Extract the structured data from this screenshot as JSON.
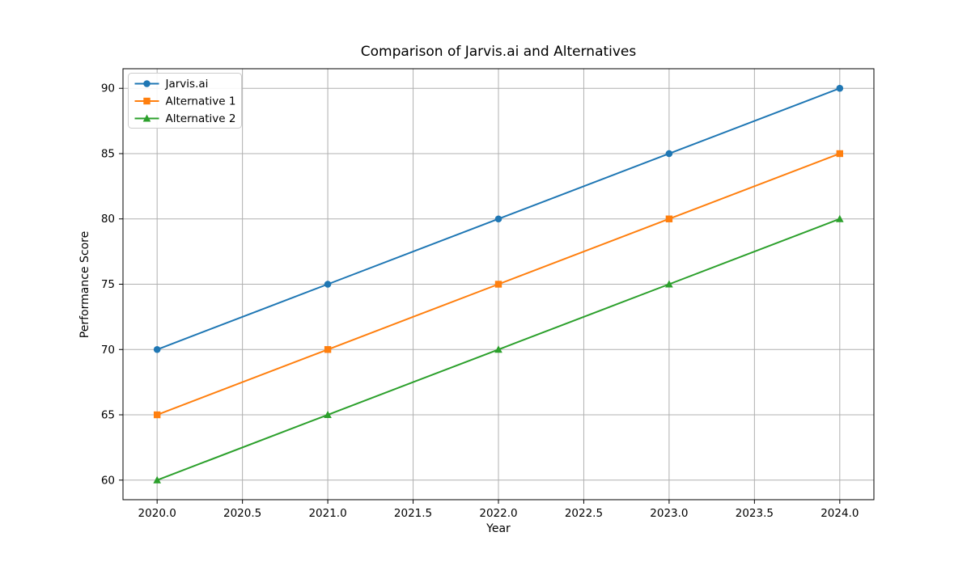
{
  "chart_data": {
    "type": "line",
    "title": "Comparison of Jarvis.ai and Alternatives",
    "xlabel": "Year",
    "ylabel": "Performance Score",
    "x": [
      2020,
      2021,
      2022,
      2023,
      2024
    ],
    "series": [
      {
        "name": "Jarvis.ai",
        "values": [
          70,
          75,
          80,
          85,
          90
        ],
        "color": "#1f77b4",
        "marker": "circle"
      },
      {
        "name": "Alternative 1",
        "values": [
          65,
          70,
          75,
          80,
          85
        ],
        "color": "#ff7f0e",
        "marker": "square"
      },
      {
        "name": "Alternative 2",
        "values": [
          60,
          65,
          70,
          75,
          80
        ],
        "color": "#2ca02c",
        "marker": "triangle"
      }
    ],
    "xtick_values": [
      2020.0,
      2020.5,
      2021.0,
      2021.5,
      2022.0,
      2022.5,
      2023.0,
      2023.5,
      2024.0
    ],
    "xtick_labels": [
      "2020.0",
      "2020.5",
      "2021.0",
      "2021.5",
      "2022.0",
      "2022.5",
      "2023.0",
      "2023.5",
      "2024.0"
    ],
    "ytick_values": [
      60,
      65,
      70,
      75,
      80,
      85,
      90
    ],
    "ytick_labels": [
      "60",
      "65",
      "70",
      "75",
      "80",
      "85",
      "90"
    ],
    "xlim": [
      2019.8,
      2024.2
    ],
    "ylim": [
      58.5,
      91.5
    ],
    "grid": true,
    "grid_color": "#b0b0b0",
    "spine_color": "#000000",
    "legend_position": "upper left",
    "legend_border_color": "#cccccc",
    "legend_background": "#ffffff"
  }
}
